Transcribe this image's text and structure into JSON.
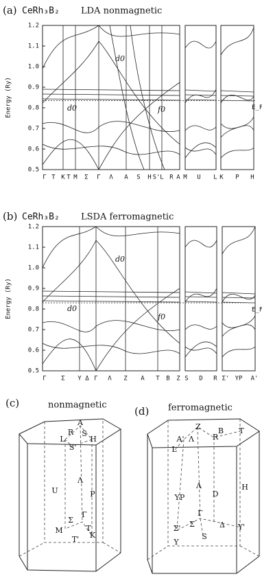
{
  "panel_a": {
    "label": "(a)",
    "compound": "CeRh₃B₂",
    "title": "LDA nonmagnetic",
    "ylabel": "Energy (Ry)",
    "ylim": [
      0.5,
      1.2
    ],
    "yticks": [
      0.5,
      0.6,
      0.7,
      0.8,
      0.9,
      {
        "value": 1,
        "label": "1.0"
      },
      1.1,
      1.2
    ],
    "fermi_level": 0.835,
    "fermi_label": "E_F",
    "annotations": [
      "d0",
      "d0",
      "f0"
    ],
    "kpoints": [
      "Γ",
      "T",
      "K",
      "T",
      "M",
      "Σ",
      "Γ",
      "Λ",
      "A",
      "S",
      "H",
      "S'",
      "L",
      "R",
      "A",
      "M",
      "U",
      "L",
      "K",
      "P",
      "H"
    ]
  },
  "panel_b": {
    "label": "(b)",
    "compound": "CeRh₃B₂",
    "title": "LSDA ferromagnetic",
    "ylabel": "Energy (Ry)",
    "ylim": [
      0.5,
      1.2
    ],
    "yticks": [
      0.5,
      0.6,
      0.7,
      0.8,
      0.9,
      {
        "value": 1,
        "label": "1.0"
      },
      1.1,
      1.2
    ],
    "fermi_level": 0.83,
    "fermi_label": "E_F",
    "annotations": [
      "d0",
      "d0",
      "f0"
    ],
    "kpoints": [
      "Γ",
      "Σ",
      "Y",
      "Δ",
      "Γ",
      "Λ",
      "Z",
      "A",
      "T",
      "B",
      "Z",
      "S",
      "D",
      "R",
      "Σ'",
      "YP",
      "A'"
    ]
  },
  "diagram_c": {
    "label": "(c)",
    "title": "nonmagnetic",
    "points": [
      "A",
      "R",
      "S",
      "L",
      "H",
      "S'",
      "U",
      "Λ",
      "P",
      "Σ",
      "Γ",
      "T",
      "M",
      "T'",
      "K"
    ]
  },
  "diagram_d": {
    "label": "(d)",
    "title": "ferromagnetic",
    "points": [
      "Z",
      "B",
      "T",
      "A'",
      "Λ",
      "R",
      "L",
      "Λ",
      "D",
      "YP",
      "H",
      "Γ",
      "Δ",
      "Σ",
      "Σ'",
      "S",
      "Y'",
      "Y"
    ]
  }
}
